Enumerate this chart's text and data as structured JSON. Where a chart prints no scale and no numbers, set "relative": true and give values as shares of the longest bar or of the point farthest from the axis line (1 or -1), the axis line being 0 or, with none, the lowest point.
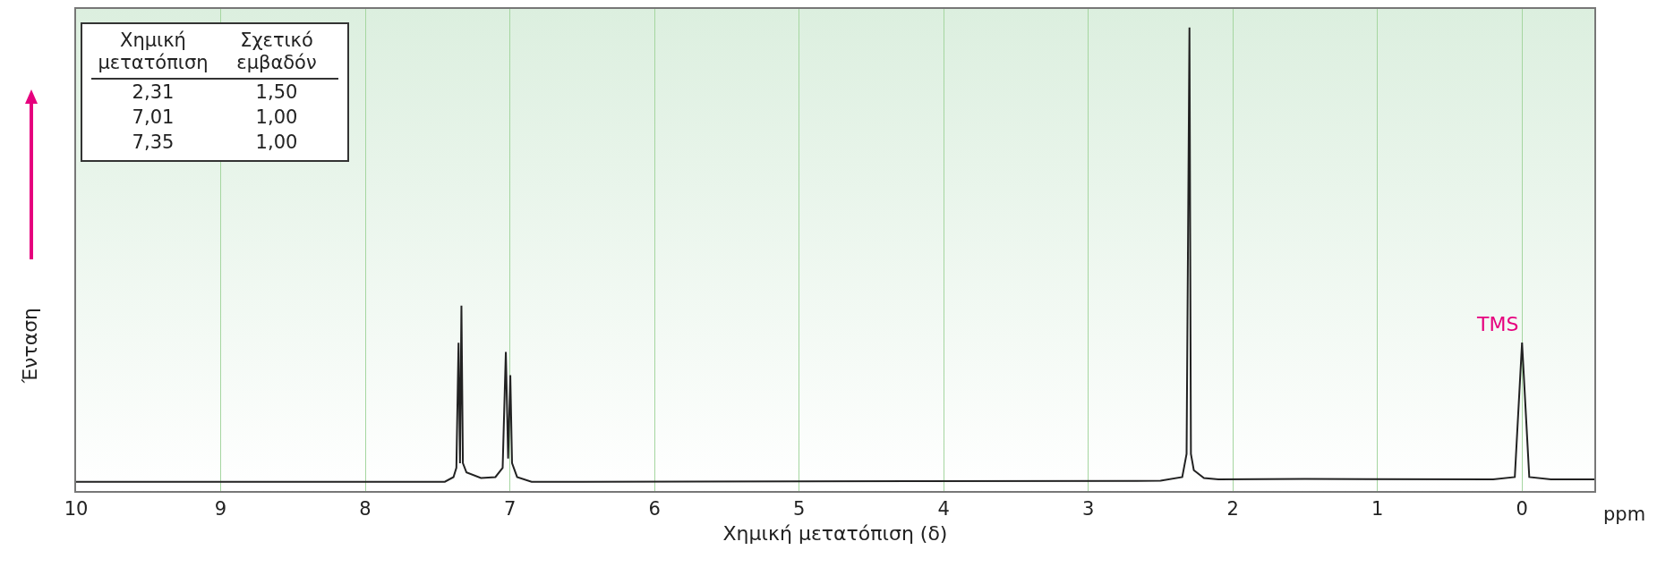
{
  "chart_data": {
    "type": "line",
    "relative": true,
    "xlabel": "Χημική μετατόπιση (δ)",
    "ylabel": "Ένταση",
    "xlim": [
      10,
      -0.5
    ],
    "xticks": [
      10,
      9,
      8,
      7,
      6,
      5,
      4,
      3,
      2,
      1,
      0
    ],
    "grid": "x",
    "tick_labels": "x",
    "marker": "none",
    "line_style": "solid",
    "x": [
      10,
      7.45,
      7.39,
      7.37,
      7.355,
      7.345,
      7.335,
      7.325,
      7.3,
      7.2,
      7.1,
      7.05,
      7.028,
      7.012,
      6.997,
      6.985,
      6.95,
      6.85,
      6.5,
      2.5,
      2.35,
      2.32,
      2.3,
      2.29,
      2.27,
      2.2,
      2.1,
      1.5,
      0.2,
      0.05,
      0,
      -0.05,
      -0.2,
      -0.5
    ],
    "series": [
      {
        "color": "#222222",
        "values": [
          0.02,
          0.02,
          0.03,
          0.05,
          0.32,
          0.06,
          0.4,
          0.06,
          0.04,
          0.028,
          0.03,
          0.05,
          0.3,
          0.07,
          0.25,
          0.06,
          0.03,
          0.02,
          0.02,
          0.022,
          0.03,
          0.08,
          1,
          0.08,
          0.045,
          0.028,
          0.025,
          0.026,
          0.025,
          0.03,
          0.32,
          0.03,
          0.025,
          0.025
        ]
      }
    ],
    "annotations": [
      "ppm",
      {
        "text": "TMS",
        "x": 0,
        "y": 0.32
      },
      "Χημική μετατόπιση",
      "Σχετικό εμβαδόν",
      "2,31",
      "1,50",
      "7,01",
      "1,00",
      "7,35",
      "1,00"
    ]
  }
}
